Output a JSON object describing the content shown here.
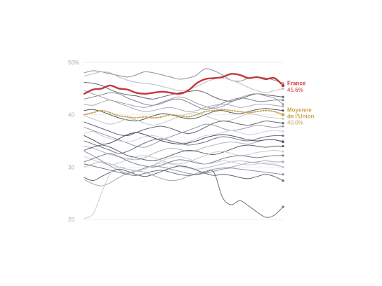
{
  "chart_data": {
    "type": "line",
    "x": [
      0,
      1,
      2,
      3,
      4,
      5,
      6,
      7,
      8,
      9,
      10,
      11,
      12,
      13,
      14,
      15,
      16,
      17,
      18,
      19,
      20,
      21,
      22,
      23
    ],
    "ylim": [
      20,
      50
    ],
    "yticks": [
      20,
      30,
      40,
      50
    ],
    "ytick_labels": [
      "20",
      "30",
      "40",
      "50%"
    ],
    "grid": true,
    "highlight": [
      {
        "name": "France",
        "label": "45,6%",
        "color": "#c6363c",
        "style": "solid",
        "values": [
          44.0,
          44.8,
          45.0,
          45.6,
          45.0,
          44.8,
          44.2,
          44.0,
          44.2,
          44.4,
          44.2,
          44.0,
          44.6,
          46.0,
          46.8,
          47.0,
          47.2,
          47.8,
          47.6,
          47.0,
          47.2,
          46.8,
          47.0,
          45.6
        ]
      },
      {
        "name": "Moyenne de l'Union",
        "label": "40,0%",
        "color": "#c8a24a",
        "style": "dotted",
        "values": [
          40.0,
          40.4,
          40.8,
          40.4,
          39.8,
          39.6,
          39.4,
          39.6,
          39.4,
          39.6,
          40.0,
          39.8,
          39.6,
          40.0,
          40.6,
          40.8,
          41.0,
          40.8,
          40.6,
          40.4,
          40.6,
          40.8,
          40.6,
          40.0
        ]
      }
    ],
    "series": [
      {
        "values": [
          48.0,
          48.4,
          48.2,
          47.8,
          47.5,
          47.2,
          47.6,
          48.2,
          48.0,
          47.6,
          47.2,
          46.8,
          47.0,
          47.6,
          48.8,
          48.4,
          47.6,
          46.6,
          46.4,
          47.0,
          47.2,
          47.0,
          46.6,
          46.0
        ],
        "color": "#8a9099"
      },
      {
        "values": [
          47.4,
          47.8,
          48.2,
          48.0,
          47.2,
          46.6,
          46.2,
          46.0,
          45.8,
          45.4,
          45.0,
          44.6,
          44.8,
          45.4,
          46.2,
          46.8,
          47.0,
          46.6,
          46.0,
          45.2,
          44.6,
          44.2,
          44.6,
          45.0
        ],
        "color": "#b6bcc4"
      },
      {
        "values": [
          46.2,
          46.0,
          45.6,
          44.8,
          44.2,
          43.8,
          43.6,
          43.2,
          43.0,
          43.4,
          43.8,
          44.2,
          44.4,
          44.6,
          44.2,
          43.4,
          42.8,
          42.6,
          43.0,
          43.6,
          44.0,
          43.8,
          43.6,
          43.4
        ],
        "color": "#5c636d"
      },
      {
        "values": [
          43.0,
          43.4,
          43.8,
          44.2,
          44.0,
          43.2,
          42.6,
          42.0,
          41.8,
          42.2,
          42.8,
          43.0,
          42.4,
          41.6,
          41.0,
          41.4,
          42.2,
          42.8,
          43.2,
          43.0,
          42.6,
          42.6,
          42.8,
          42.8
        ],
        "color": "#7e858e"
      },
      {
        "values": [
          42.0,
          41.8,
          42.4,
          42.8,
          42.2,
          41.6,
          41.0,
          40.6,
          40.8,
          41.2,
          41.4,
          41.0,
          40.6,
          40.8,
          41.4,
          41.8,
          42.0,
          41.8,
          41.4,
          41.6,
          42.0,
          42.0,
          41.8,
          41.6
        ],
        "color": "#a8aeb6"
      },
      {
        "values": [
          40.8,
          41.0,
          40.6,
          40.0,
          39.4,
          39.0,
          38.8,
          39.2,
          39.8,
          40.2,
          40.0,
          39.6,
          39.2,
          39.4,
          40.0,
          40.6,
          40.8,
          40.4,
          40.2,
          40.6,
          41.0,
          41.2,
          41.0,
          40.8
        ],
        "color": "#4f5660"
      },
      {
        "values": [
          39.8,
          39.2,
          38.6,
          38.2,
          38.6,
          39.2,
          39.0,
          38.4,
          38.0,
          38.4,
          39.0,
          39.6,
          40.2,
          40.4,
          39.8,
          39.2,
          38.8,
          39.0,
          39.6,
          40.2,
          40.0,
          39.6,
          39.4,
          39.2
        ],
        "color": "#c3c8ce"
      },
      {
        "values": [
          38.6,
          38.0,
          37.4,
          36.8,
          36.2,
          36.0,
          36.6,
          37.2,
          37.6,
          37.8,
          37.4,
          36.8,
          36.4,
          36.8,
          37.6,
          38.4,
          38.8,
          38.6,
          38.2,
          38.0,
          38.4,
          38.8,
          38.6,
          38.4
        ],
        "color": "#5f6670"
      },
      {
        "values": [
          37.6,
          37.0,
          36.4,
          35.8,
          35.2,
          34.6,
          34.0,
          33.8,
          34.4,
          35.2,
          35.8,
          36.4,
          37.0,
          37.6,
          38.2,
          38.0,
          37.4,
          37.0,
          37.2,
          37.6,
          38.0,
          37.8,
          37.6,
          37.8
        ],
        "color": "#979da6"
      },
      {
        "values": [
          36.4,
          36.8,
          36.0,
          35.4,
          35.0,
          34.8,
          35.2,
          35.8,
          36.0,
          35.6,
          35.0,
          34.6,
          34.8,
          35.4,
          36.0,
          36.2,
          36.6,
          37.0,
          36.6,
          36.2,
          36.4,
          36.8,
          37.0,
          36.8
        ],
        "color": "#cdd1d6"
      },
      {
        "values": [
          35.0,
          34.4,
          33.8,
          33.2,
          32.6,
          33.0,
          33.8,
          34.6,
          35.2,
          35.4,
          35.0,
          34.6,
          34.2,
          34.4,
          34.8,
          35.4,
          35.8,
          35.6,
          35.2,
          35.0,
          35.4,
          35.8,
          36.0,
          36.0
        ],
        "color": "#6d747e"
      },
      {
        "values": [
          34.0,
          33.6,
          33.0,
          32.4,
          32.0,
          31.6,
          31.4,
          31.8,
          32.6,
          33.2,
          33.6,
          33.4,
          33.0,
          33.2,
          33.8,
          34.2,
          34.6,
          34.8,
          34.6,
          34.4,
          34.8,
          35.2,
          35.2,
          35.0
        ],
        "color": "#aeb4bb"
      },
      {
        "values": [
          33.2,
          33.8,
          34.2,
          33.8,
          33.0,
          32.2,
          31.8,
          31.4,
          31.2,
          31.6,
          32.2,
          32.8,
          33.2,
          33.0,
          32.6,
          32.4,
          32.8,
          33.4,
          34.0,
          34.2,
          34.0,
          33.8,
          34.0,
          34.0
        ],
        "color": "#58606a"
      },
      {
        "values": [
          32.0,
          31.4,
          30.8,
          30.4,
          30.8,
          31.4,
          32.0,
          32.2,
          31.8,
          31.2,
          30.8,
          30.6,
          31.0,
          31.6,
          32.2,
          32.8,
          33.0,
          32.6,
          32.2,
          32.4,
          32.8,
          33.0,
          33.2,
          33.0
        ],
        "color": "#c6cbd1"
      },
      {
        "values": [
          31.0,
          31.6,
          32.2,
          32.6,
          32.0,
          31.2,
          30.6,
          30.2,
          30.0,
          30.4,
          31.0,
          31.4,
          31.2,
          30.8,
          30.6,
          31.0,
          31.6,
          32.0,
          32.2,
          32.0,
          31.8,
          32.0,
          32.2,
          32.2
        ],
        "color": "#7b828b"
      },
      {
        "values": [
          30.0,
          30.6,
          31.0,
          30.6,
          30.0,
          29.6,
          29.4,
          29.8,
          30.4,
          30.8,
          30.6,
          30.2,
          29.8,
          29.6,
          29.8,
          30.2,
          30.6,
          31.0,
          31.2,
          31.0,
          30.8,
          30.6,
          30.4,
          30.0
        ],
        "color": "#b9bec5"
      },
      {
        "values": [
          28.0,
          27.4,
          28.2,
          29.0,
          29.6,
          29.2,
          28.6,
          28.2,
          28.6,
          29.2,
          29.8,
          30.2,
          30.0,
          29.4,
          28.8,
          28.4,
          28.6,
          28.4,
          28.0,
          27.8,
          28.2,
          28.6,
          28.2,
          27.4
        ],
        "color": "#5a616b"
      },
      {
        "values": [
          27.6,
          26.8,
          26.4,
          27.0,
          28.0,
          28.8,
          29.2,
          29.0,
          28.4,
          27.8,
          27.4,
          27.6,
          28.2,
          28.8,
          29.2,
          29.6,
          29.8,
          30.0,
          30.4,
          30.8,
          31.0,
          31.2,
          31.0,
          31.0
        ],
        "color": "#a3a9b1"
      },
      {
        "values": [
          33.0,
          32.2,
          31.2,
          30.2,
          29.4,
          28.8,
          29.2,
          29.8,
          30.2,
          30.0,
          29.6,
          29.2,
          28.8,
          28.6,
          28.8,
          29.2,
          29.6,
          29.8,
          29.6,
          29.4,
          29.2,
          29.0,
          28.8,
          28.6
        ],
        "color": "#8f959e"
      },
      {
        "values": [
          20.2,
          21.0,
          25.0,
          28.8,
          30.0,
          29.6,
          29.2,
          29.6,
          30.4,
          31.2,
          31.8,
          32.0,
          31.6,
          31.0,
          30.6,
          30.8,
          31.2,
          31.0,
          30.6,
          30.4,
          30.6,
          30.8,
          30.6,
          30.0
        ],
        "color": "#c9cdd3"
      },
      {
        "values": [
          30.6,
          30.2,
          29.8,
          29.4,
          29.0,
          28.6,
          28.4,
          28.8,
          29.2,
          29.4,
          29.0,
          28.6,
          28.4,
          28.6,
          29.0,
          29.0,
          24.2,
          22.8,
          23.6,
          22.6,
          21.4,
          20.4,
          20.8,
          22.4
        ],
        "color": "#6a717b"
      },
      {
        "values": [
          44.6,
          44.0,
          43.4,
          42.8,
          42.4,
          42.0,
          41.6,
          41.4,
          41.8,
          42.4,
          43.0,
          43.4,
          43.0,
          42.2,
          41.6,
          41.2,
          41.6,
          42.4,
          43.2,
          43.8,
          44.0,
          43.6,
          43.2,
          42.0
        ],
        "color": "#9aa0a8"
      },
      {
        "values": [
          36.0,
          35.2,
          34.4,
          34.6,
          35.4,
          36.2,
          36.6,
          36.2,
          35.6,
          35.0,
          34.6,
          34.4,
          34.6,
          35.0,
          35.6,
          36.0,
          36.2,
          36.0,
          35.6,
          35.2,
          35.0,
          35.2,
          35.2,
          34.8
        ],
        "color": "#4a515b"
      }
    ]
  }
}
